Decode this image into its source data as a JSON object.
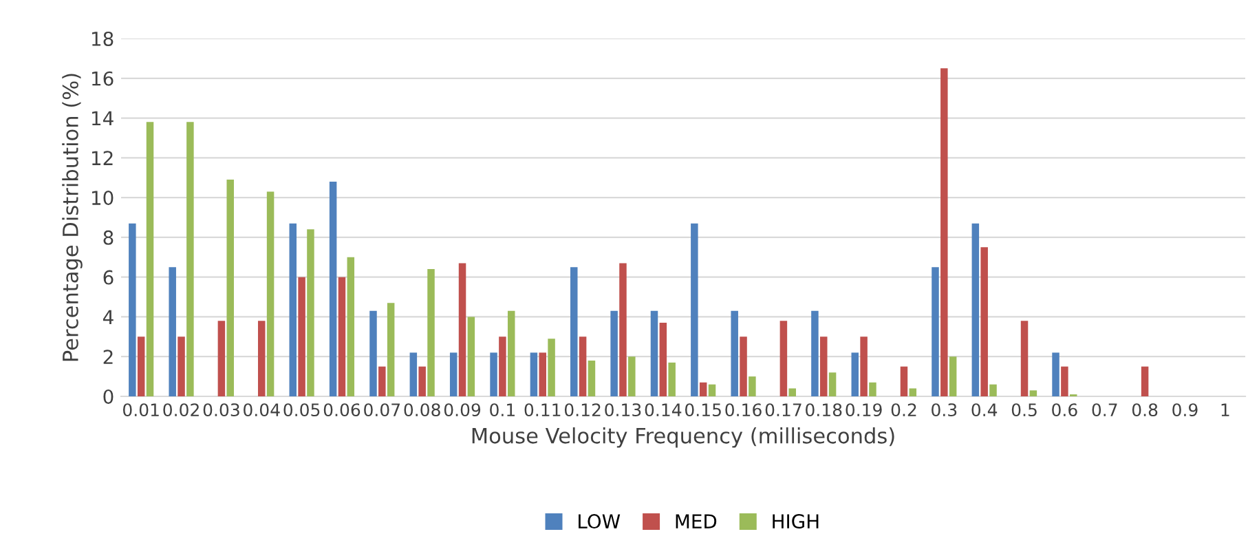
{
  "chart_data": {
    "type": "bar",
    "xlabel": "Mouse Velocity Frequency (milliseconds)",
    "ylabel": "Percentage Distribution (%)",
    "categories": [
      "0.01",
      "0.02",
      "0.03",
      "0.04",
      "0.05",
      "0.06",
      "0.07",
      "0.08",
      "0.09",
      "0.1",
      "0.11",
      "0.12",
      "0.13",
      "0.14",
      "0.15",
      "0.16",
      "0.17",
      "0.18",
      "0.19",
      "0.2",
      "0.3",
      "0.4",
      "0.5",
      "0.6",
      "0.7",
      "0.8",
      "0.9",
      "1"
    ],
    "series": [
      {
        "name": "LOW",
        "color": "#4f81bd",
        "values": [
          8.7,
          6.5,
          0,
          0,
          8.7,
          10.8,
          4.3,
          2.2,
          2.2,
          2.2,
          2.2,
          6.5,
          4.3,
          4.3,
          8.7,
          4.3,
          0,
          4.3,
          2.2,
          0,
          6.5,
          8.7,
          0,
          2.2,
          0,
          0,
          0,
          0
        ]
      },
      {
        "name": "MED",
        "color": "#c0504d",
        "values": [
          3.0,
          3.0,
          3.8,
          3.8,
          6.0,
          6.0,
          1.5,
          1.5,
          6.7,
          3.0,
          2.2,
          3.0,
          6.7,
          3.7,
          0.7,
          3.0,
          3.8,
          3.0,
          3.0,
          1.5,
          16.5,
          7.5,
          3.8,
          1.5,
          0,
          1.5,
          0,
          0
        ]
      },
      {
        "name": "HIGH",
        "color": "#9bbb59",
        "values": [
          13.8,
          13.8,
          10.9,
          10.3,
          8.4,
          7.0,
          4.7,
          6.4,
          4.0,
          4.3,
          2.9,
          1.8,
          2.0,
          1.7,
          0.6,
          1.0,
          0.4,
          1.2,
          0.7,
          0.4,
          2.0,
          0.6,
          0.3,
          0.1,
          0,
          0,
          0,
          0
        ]
      }
    ],
    "ylim": [
      0,
      18
    ],
    "yticks": [
      0,
      2,
      4,
      6,
      8,
      10,
      12,
      14,
      16,
      18
    ],
    "grid": "y",
    "legend": "bottom"
  }
}
